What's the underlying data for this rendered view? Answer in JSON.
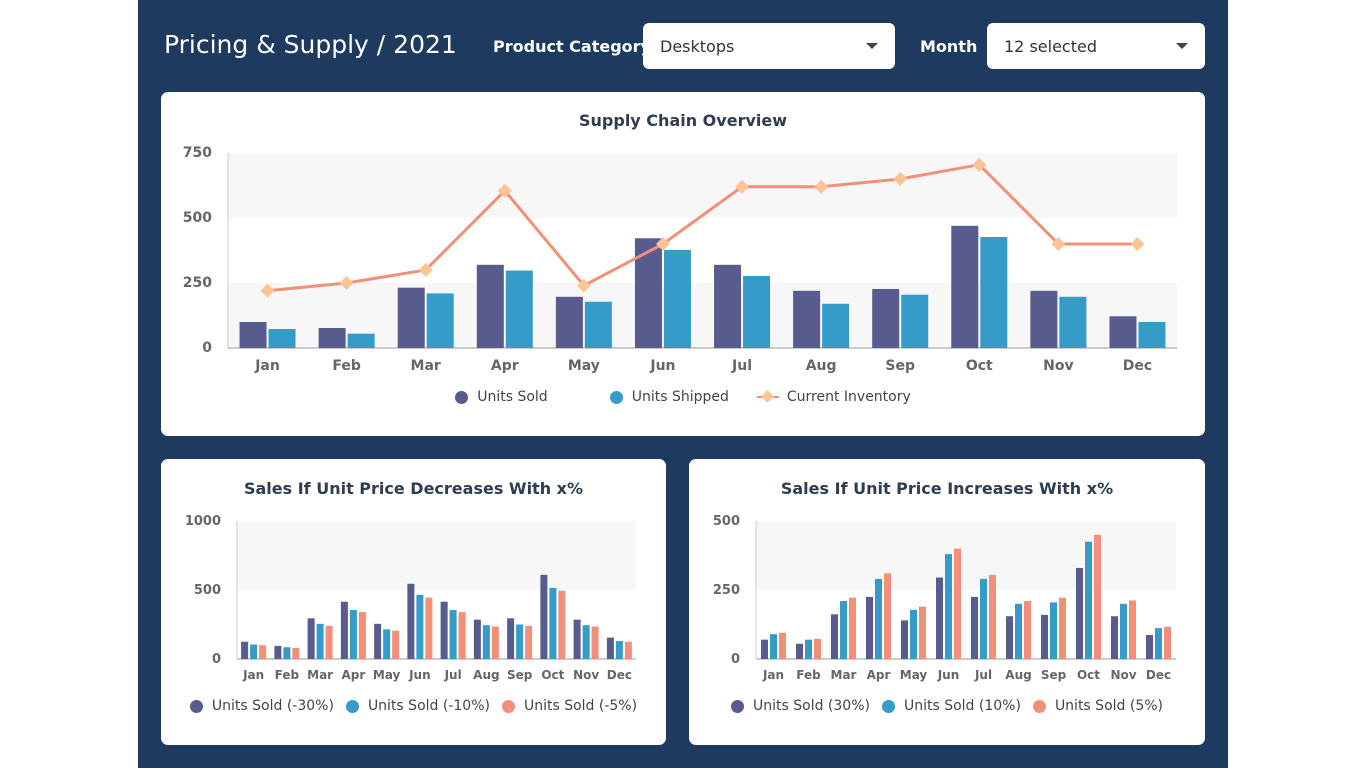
{
  "header": {
    "title": "Pricing & Supply / 2021",
    "category_label": "Product Category",
    "category_value": "Desktops",
    "month_label": "Month",
    "month_value": "12 selected"
  },
  "colors": {
    "units_sold": "#585b8e",
    "units_shipped": "#359cc9",
    "inventory": "#f28f79",
    "inventory_marker": "#fdc593",
    "background": "#1e3a5f"
  },
  "chart_data": [
    {
      "type": "bar",
      "title": "Supply Chain Overview",
      "categories": [
        "Jan",
        "Feb",
        "Mar",
        "Apr",
        "May",
        "Jun",
        "Jul",
        "Aug",
        "Sep",
        "Oct",
        "Nov",
        "Dec"
      ],
      "series": [
        {
          "name": "Units Sold",
          "type": "bar",
          "values": [
            100,
            77,
            232,
            320,
            197,
            422,
            320,
            220,
            227,
            470,
            220,
            122
          ]
        },
        {
          "name": "Units Shipped",
          "type": "bar",
          "values": [
            73,
            55,
            210,
            298,
            178,
            377,
            277,
            170,
            205,
            427,
            197,
            100
          ]
        },
        {
          "name": "Current Inventory",
          "type": "line",
          "values": [
            220,
            250,
            300,
            605,
            240,
            400,
            620,
            620,
            650,
            705,
            400,
            400
          ]
        }
      ],
      "yticks": [
        0,
        250,
        500,
        750
      ],
      "ylim": [
        0,
        750
      ],
      "legend_position": "bottom",
      "grid": "alternating bands"
    },
    {
      "type": "bar",
      "title": "Sales If Unit Price Decreases With x%",
      "categories": [
        "Jan",
        "Feb",
        "Mar",
        "Apr",
        "May",
        "Jun",
        "Jul",
        "Aug",
        "Sep",
        "Oct",
        "Nov",
        "Dec"
      ],
      "series": [
        {
          "name": "Units Sold (-30%)",
          "values": [
            125,
            95,
            295,
            415,
            255,
            545,
            415,
            285,
            295,
            610,
            285,
            155
          ]
        },
        {
          "name": "Units Sold (-10%)",
          "values": [
            105,
            85,
            255,
            355,
            215,
            465,
            355,
            245,
            250,
            515,
            245,
            130
          ]
        },
        {
          "name": "Units Sold (-5%)",
          "values": [
            100,
            80,
            240,
            340,
            205,
            445,
            340,
            235,
            240,
            495,
            235,
            125
          ]
        }
      ],
      "yticks": [
        0,
        500,
        1000
      ],
      "ylim": [
        0,
        1000
      ],
      "legend_position": "bottom"
    },
    {
      "type": "bar",
      "title": "Sales If Unit Price Increases With x%",
      "categories": [
        "Jan",
        "Feb",
        "Mar",
        "Apr",
        "May",
        "Jun",
        "Jul",
        "Aug",
        "Sep",
        "Oct",
        "Nov",
        "Dec"
      ],
      "series": [
        {
          "name": "Units Sold (30%)",
          "values": [
            70,
            55,
            162,
            225,
            140,
            295,
            225,
            155,
            160,
            330,
            155,
            87
          ]
        },
        {
          "name": "Units Sold (10%)",
          "values": [
            90,
            70,
            210,
            290,
            178,
            380,
            290,
            200,
            205,
            425,
            200,
            112
          ]
        },
        {
          "name": "Units Sold (5%)",
          "values": [
            95,
            73,
            222,
            310,
            190,
            400,
            305,
            210,
            222,
            450,
            212,
            117
          ]
        }
      ],
      "yticks": [
        0,
        250,
        500
      ],
      "ylim": [
        0,
        500
      ],
      "legend_position": "bottom"
    }
  ]
}
